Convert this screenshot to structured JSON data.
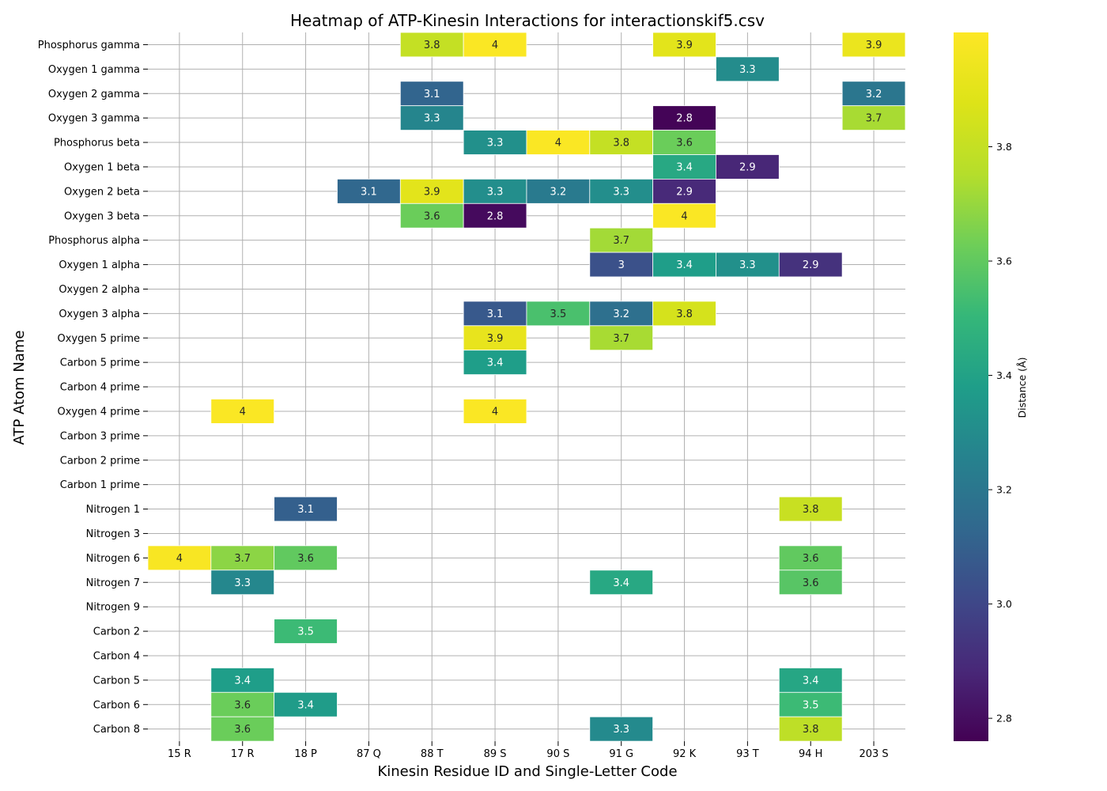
{
  "chart_data": {
    "type": "heatmap",
    "title": "Heatmap of ATP-Kinesin Interactions for interactionskif5.csv",
    "xlabel": "Kinesin Residue ID and Single-Letter Code",
    "ylabel": "ATP Atom Name",
    "colorbar_label": "Distance (Å)",
    "colormap": "viridis",
    "vmin": 2.76,
    "vmax": 4.0,
    "colorbar_ticks": [
      "2.8",
      "3.0",
      "3.2",
      "3.4",
      "3.6",
      "3.8"
    ],
    "grid": true,
    "columns": [
      "15 R",
      "17 R",
      "18 P",
      "87 Q",
      "88 T",
      "89 S",
      "90 S",
      "91 G",
      "92 K",
      "93 T",
      "94 H",
      "203 S"
    ],
    "rows": [
      "Phosphorus gamma",
      "Oxygen 1 gamma",
      "Oxygen 2 gamma",
      "Oxygen 3 gamma",
      "Phosphorus beta",
      "Oxygen 1 beta",
      "Oxygen 2 beta",
      "Oxygen 3 beta",
      "Phosphorus alpha",
      "Oxygen 1 alpha",
      "Oxygen 2 alpha",
      "Oxygen 3 alpha",
      "Oxygen 5 prime",
      "Carbon 5 prime",
      "Carbon 4 prime",
      "Oxygen 4 prime",
      "Carbon 3 prime",
      "Carbon 2 prime",
      "Carbon 1 prime",
      "Nitrogen 1",
      "Nitrogen 3",
      "Nitrogen 6",
      "Nitrogen 7",
      "Nitrogen 9",
      "Carbon 2",
      "Carbon 4",
      "Carbon 5",
      "Carbon 6",
      "Carbon 8"
    ],
    "cells": [
      {
        "row": "Phosphorus gamma",
        "col": "88 T",
        "value": 3.8,
        "label": "3.8"
      },
      {
        "row": "Phosphorus gamma",
        "col": "89 S",
        "value": 3.99,
        "label": "4"
      },
      {
        "row": "Phosphorus gamma",
        "col": "92 K",
        "value": 3.9,
        "label": "3.9"
      },
      {
        "row": "Phosphorus gamma",
        "col": "203 S",
        "value": 3.93,
        "label": "3.9"
      },
      {
        "row": "Oxygen 1 gamma",
        "col": "93 T",
        "value": 3.3,
        "label": "3.3"
      },
      {
        "row": "Oxygen 2 gamma",
        "col": "88 T",
        "value": 3.12,
        "label": "3.1"
      },
      {
        "row": "Oxygen 2 gamma",
        "col": "203 S",
        "value": 3.2,
        "label": "3.2"
      },
      {
        "row": "Oxygen 3 gamma",
        "col": "88 T",
        "value": 3.27,
        "label": "3.3"
      },
      {
        "row": "Oxygen 3 gamma",
        "col": "92 K",
        "value": 2.77,
        "label": "2.8"
      },
      {
        "row": "Oxygen 3 gamma",
        "col": "203 S",
        "value": 3.73,
        "label": "3.7"
      },
      {
        "row": "Phosphorus beta",
        "col": "89 S",
        "value": 3.32,
        "label": "3.3"
      },
      {
        "row": "Phosphorus beta",
        "col": "90 S",
        "value": 3.99,
        "label": "4"
      },
      {
        "row": "Phosphorus beta",
        "col": "91 G",
        "value": 3.8,
        "label": "3.8"
      },
      {
        "row": "Phosphorus beta",
        "col": "92 K",
        "value": 3.62,
        "label": "3.6"
      },
      {
        "row": "Oxygen 1 beta",
        "col": "92 K",
        "value": 3.43,
        "label": "3.4"
      },
      {
        "row": "Oxygen 1 beta",
        "col": "93 T",
        "value": 2.88,
        "label": "2.9"
      },
      {
        "row": "Oxygen 2 beta",
        "col": "87 Q",
        "value": 3.13,
        "label": "3.1"
      },
      {
        "row": "Oxygen 2 beta",
        "col": "88 T",
        "value": 3.9,
        "label": "3.9"
      },
      {
        "row": "Oxygen 2 beta",
        "col": "89 S",
        "value": 3.31,
        "label": "3.3"
      },
      {
        "row": "Oxygen 2 beta",
        "col": "90 S",
        "value": 3.22,
        "label": "3.2"
      },
      {
        "row": "Oxygen 2 beta",
        "col": "91 G",
        "value": 3.31,
        "label": "3.3"
      },
      {
        "row": "Oxygen 2 beta",
        "col": "92 K",
        "value": 2.89,
        "label": "2.9"
      },
      {
        "row": "Oxygen 3 beta",
        "col": "88 T",
        "value": 3.62,
        "label": "3.6"
      },
      {
        "row": "Oxygen 3 beta",
        "col": "89 S",
        "value": 2.79,
        "label": "2.8"
      },
      {
        "row": "Oxygen 3 beta",
        "col": "92 K",
        "value": 3.99,
        "label": "4"
      },
      {
        "row": "Phosphorus alpha",
        "col": "91 G",
        "value": 3.72,
        "label": "3.7"
      },
      {
        "row": "Oxygen 1 alpha",
        "col": "91 G",
        "value": 3.04,
        "label": "3"
      },
      {
        "row": "Oxygen 1 alpha",
        "col": "92 K",
        "value": 3.38,
        "label": "3.4"
      },
      {
        "row": "Oxygen 1 alpha",
        "col": "93 T",
        "value": 3.32,
        "label": "3.3"
      },
      {
        "row": "Oxygen 1 alpha",
        "col": "94 H",
        "value": 2.92,
        "label": "2.9"
      },
      {
        "row": "Oxygen 3 alpha",
        "col": "89 S",
        "value": 3.07,
        "label": "3.1"
      },
      {
        "row": "Oxygen 3 alpha",
        "col": "90 S",
        "value": 3.55,
        "label": "3.5"
      },
      {
        "row": "Oxygen 3 alpha",
        "col": "91 G",
        "value": 3.17,
        "label": "3.2"
      },
      {
        "row": "Oxygen 3 alpha",
        "col": "92 K",
        "value": 3.85,
        "label": "3.8"
      },
      {
        "row": "Oxygen 5 prime",
        "col": "89 S",
        "value": 3.92,
        "label": "3.9"
      },
      {
        "row": "Oxygen 5 prime",
        "col": "91 G",
        "value": 3.73,
        "label": "3.7"
      },
      {
        "row": "Carbon 5 prime",
        "col": "89 S",
        "value": 3.38,
        "label": "3.4"
      },
      {
        "row": "Oxygen 4 prime",
        "col": "17 R",
        "value": 3.99,
        "label": "4"
      },
      {
        "row": "Oxygen 4 prime",
        "col": "89 S",
        "value": 3.99,
        "label": "4"
      },
      {
        "row": "Nitrogen 1",
        "col": "18 P",
        "value": 3.1,
        "label": "3.1"
      },
      {
        "row": "Nitrogen 1",
        "col": "94 H",
        "value": 3.81,
        "label": "3.8"
      },
      {
        "row": "Nitrogen 6",
        "col": "15 R",
        "value": 3.98,
        "label": "4"
      },
      {
        "row": "Nitrogen 6",
        "col": "17 R",
        "value": 3.68,
        "label": "3.7"
      },
      {
        "row": "Nitrogen 6",
        "col": "18 P",
        "value": 3.6,
        "label": "3.6"
      },
      {
        "row": "Nitrogen 6",
        "col": "94 H",
        "value": 3.6,
        "label": "3.6"
      },
      {
        "row": "Nitrogen 7",
        "col": "17 R",
        "value": 3.28,
        "label": "3.3"
      },
      {
        "row": "Nitrogen 7",
        "col": "91 G",
        "value": 3.43,
        "label": "3.4"
      },
      {
        "row": "Nitrogen 7",
        "col": "94 H",
        "value": 3.58,
        "label": "3.6"
      },
      {
        "row": "Carbon 2",
        "col": "18 P",
        "value": 3.52,
        "label": "3.5"
      },
      {
        "row": "Carbon 5",
        "col": "17 R",
        "value": 3.38,
        "label": "3.4"
      },
      {
        "row": "Carbon 5",
        "col": "94 H",
        "value": 3.42,
        "label": "3.4"
      },
      {
        "row": "Carbon 6",
        "col": "17 R",
        "value": 3.62,
        "label": "3.6"
      },
      {
        "row": "Carbon 6",
        "col": "18 P",
        "value": 3.37,
        "label": "3.4"
      },
      {
        "row": "Carbon 6",
        "col": "94 H",
        "value": 3.52,
        "label": "3.5"
      },
      {
        "row": "Carbon 8",
        "col": "17 R",
        "value": 3.62,
        "label": "3.6"
      },
      {
        "row": "Carbon 8",
        "col": "91 G",
        "value": 3.29,
        "label": "3.3"
      },
      {
        "row": "Carbon 8",
        "col": "94 H",
        "value": 3.78,
        "label": "3.8"
      }
    ]
  }
}
